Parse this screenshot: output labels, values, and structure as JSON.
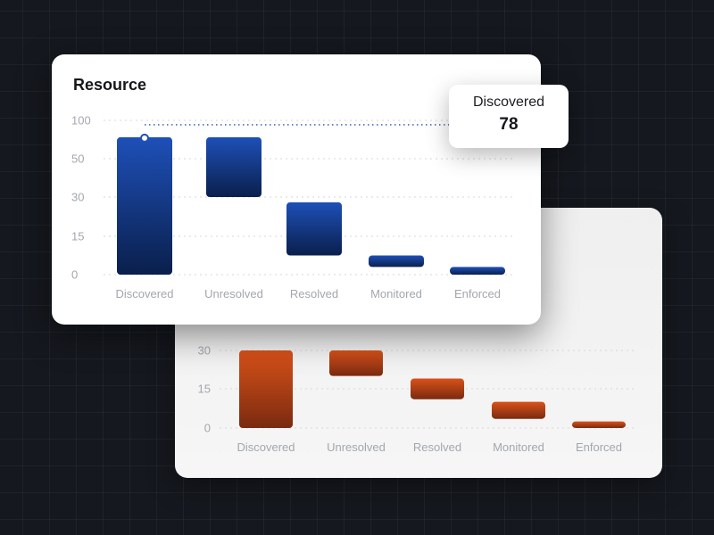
{
  "chart_data": [
    {
      "type": "bar",
      "subtype": "waterfall",
      "title": "",
      "categories": [
        "Discovered",
        "Unresolved",
        "Resolved",
        "Monitored",
        "Enforced"
      ],
      "y_ticks": [
        "30",
        "15",
        "0"
      ],
      "y_tick_values": [
        30,
        15,
        0
      ],
      "bars": [
        {
          "low": 0,
          "high": 55
        },
        {
          "low": 20,
          "high": 42
        },
        {
          "low": 11,
          "high": 19
        },
        {
          "low": 3.5,
          "high": 10
        },
        {
          "low": 0,
          "high": 2.5
        }
      ],
      "grid": true,
      "colors": {
        "top": "#d9521a",
        "bottom": "#7a2a10"
      }
    },
    {
      "type": "bar",
      "subtype": "waterfall",
      "title": "Resource",
      "categories": [
        "Discovered",
        "Unresolved",
        "Resolved",
        "Monitored",
        "Enforced"
      ],
      "y_ticks": [
        "100",
        "50",
        "30",
        "15",
        "0"
      ],
      "y_tick_values": [
        100,
        50,
        30,
        15,
        0
      ],
      "bars": [
        {
          "low": 0,
          "high": 78
        },
        {
          "low": 30,
          "high": 78
        },
        {
          "low": 7.5,
          "high": 28
        },
        {
          "low": 3,
          "high": 7.5
        },
        {
          "low": 0,
          "high": 3
        }
      ],
      "grid": true,
      "colors": {
        "top": "#1e50b8",
        "bottom": "#0a1f4c"
      },
      "highlight_index": 0,
      "tooltip": {
        "label": "Discovered",
        "value": "78"
      }
    }
  ]
}
